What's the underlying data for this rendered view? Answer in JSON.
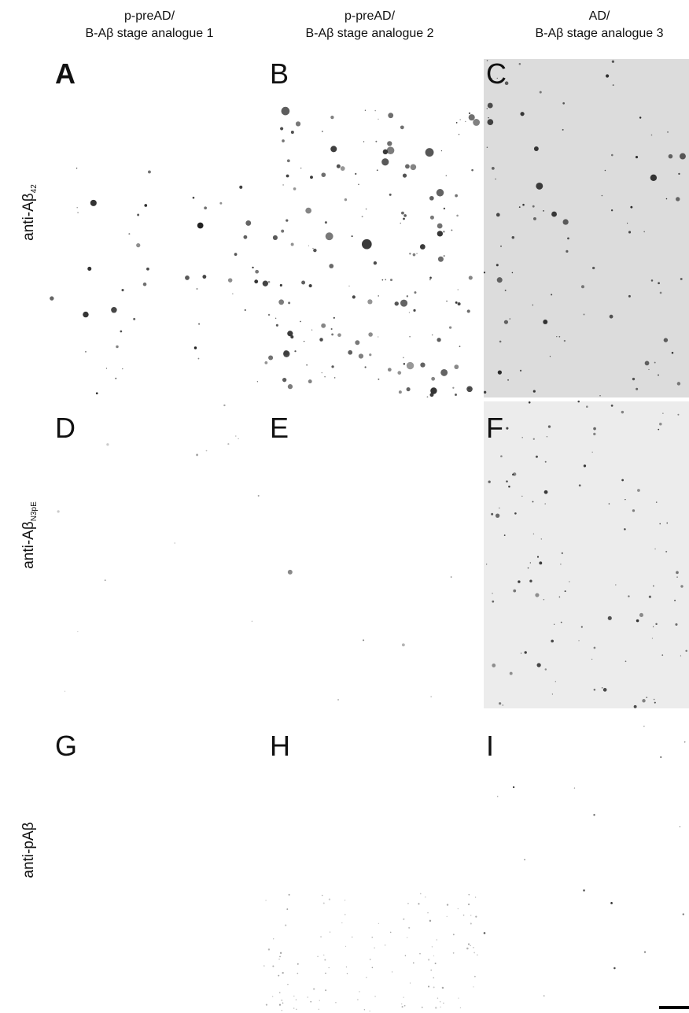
{
  "columns": [
    {
      "line1": "p-preAD/",
      "line2": "B-Aβ stage analogue 1"
    },
    {
      "line1": "p-preAD/",
      "line2": "B-Aβ stage analogue 2"
    },
    {
      "line1": "AD/",
      "line2": "B-Aβ stage analogue 3"
    }
  ],
  "rows": [
    {
      "label": "anti-Aβ",
      "sub": "42"
    },
    {
      "label": "anti-Aβ",
      "sub": "N3pE"
    },
    {
      "label": "anti-pAβ"
    }
  ],
  "panels": [
    "A",
    "B",
    "C",
    "D",
    "E",
    "F",
    "G",
    "H",
    "I"
  ]
}
